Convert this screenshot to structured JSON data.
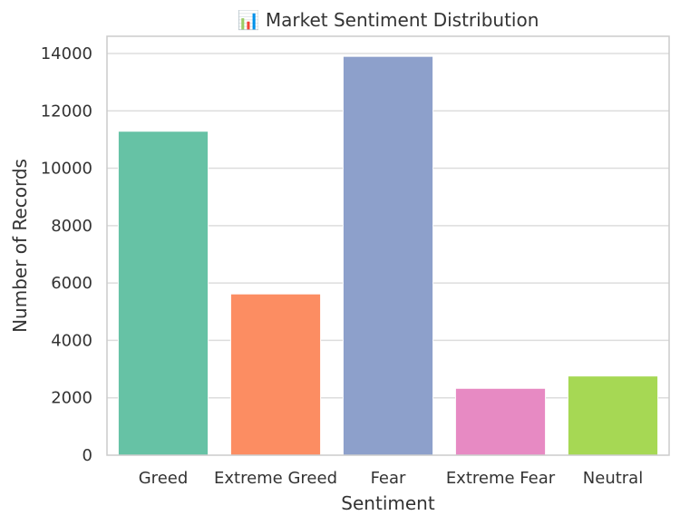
{
  "chart_data": {
    "type": "bar",
    "title": "📊 Market Sentiment Distribution",
    "xlabel": "Sentiment",
    "ylabel": "Number of Records",
    "categories": [
      "Greed",
      "Extreme Greed",
      "Fear",
      "Extreme Fear",
      "Neutral"
    ],
    "values": [
      11290,
      5620,
      13900,
      2330,
      2760
    ],
    "colors": [
      "#66c2a5",
      "#fc8d62",
      "#8da0cb",
      "#e78ac3",
      "#a6d854"
    ],
    "ylim": [
      0,
      14600
    ],
    "yticks": [
      0,
      2000,
      4000,
      6000,
      8000,
      10000,
      12000,
      14000
    ],
    "grid": true,
    "grid_color": "#dddddd",
    "background": "#ffffff"
  }
}
